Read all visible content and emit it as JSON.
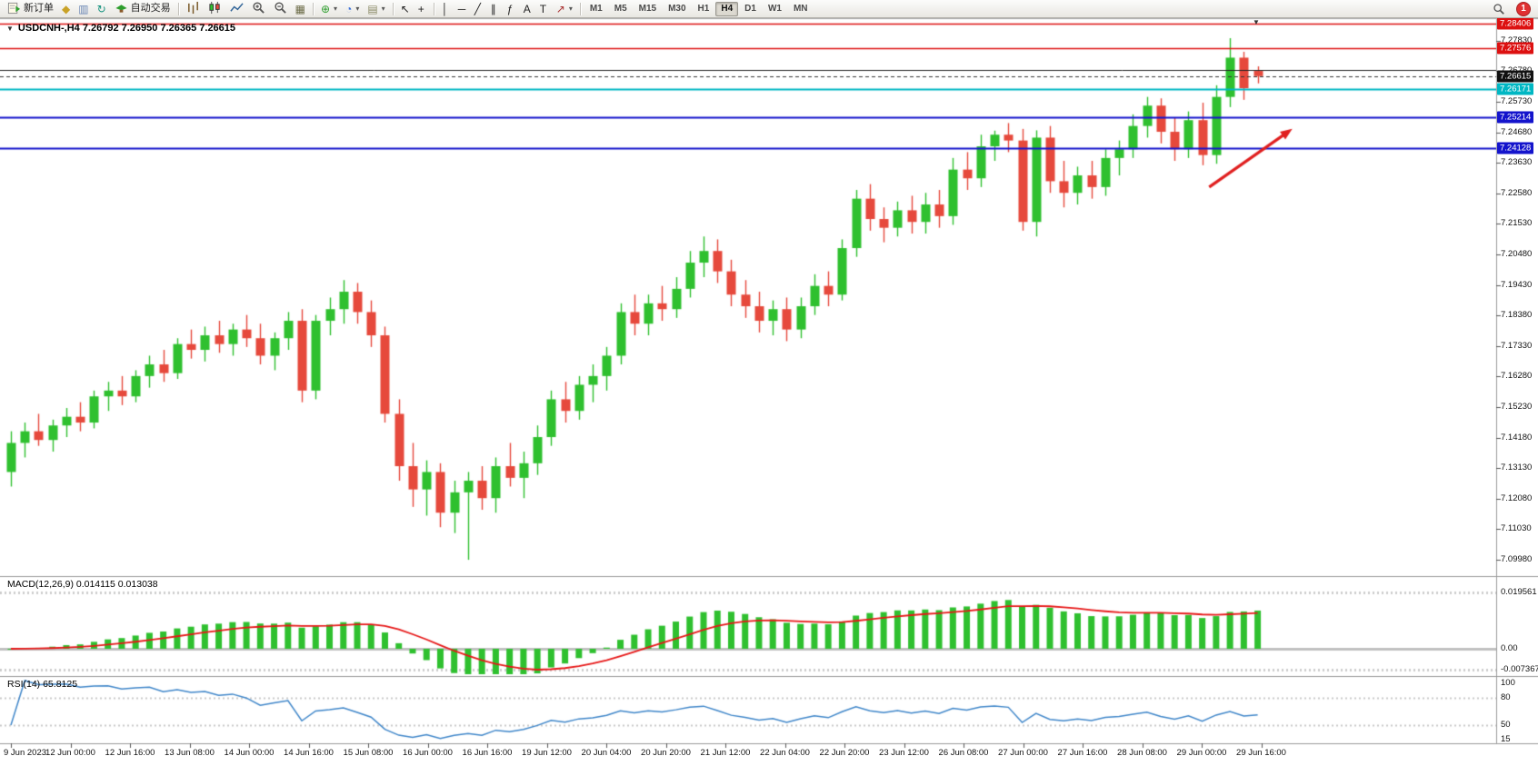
{
  "toolbar": {
    "notification_count": "1",
    "dropdown_glyph": "▾",
    "items": [
      {
        "type": "btn",
        "name": "new-order-button",
        "svg": "neworder",
        "label": "新订单"
      },
      {
        "type": "btn",
        "name": "ink-drop-icon",
        "glyph": "◆",
        "color": "#c9a227"
      },
      {
        "type": "btn",
        "name": "print-preview-icon",
        "glyph": "▥",
        "color": "#6b87b5"
      },
      {
        "type": "btn",
        "name": "refresh-icon",
        "glyph": "↻",
        "color": "#18937f"
      },
      {
        "type": "btn",
        "name": "autotrading-button",
        "svg": "robot",
        "label": "自动交易"
      },
      {
        "type": "sep"
      },
      {
        "type": "btn",
        "name": "bar-chart-icon",
        "svg": "bars"
      },
      {
        "type": "btn",
        "name": "candlestick-chart-icon",
        "svg": "candles"
      },
      {
        "type": "btn",
        "name": "line-chart-icon",
        "svg": "linechart"
      },
      {
        "type": "btn",
        "name": "zoom-in-icon",
        "svg": "zoomin"
      },
      {
        "type": "btn",
        "name": "zoom-out-icon",
        "svg": "zoomout"
      },
      {
        "type": "btn",
        "name": "tile-windows-icon",
        "glyph": "▦",
        "color": "#6d6d49"
      },
      {
        "type": "sep"
      },
      {
        "type": "btn",
        "name": "indicators-button",
        "glyph": "⊕",
        "color": "#2e9e2e",
        "dropdown": true
      },
      {
        "type": "btn",
        "name": "periods-button",
        "glyph": "◔",
        "color": "#3a6fd8",
        "dropdown": true
      },
      {
        "type": "btn",
        "name": "templates-button",
        "glyph": "▤",
        "color": "#8a8a66",
        "dropdown": true
      },
      {
        "type": "sep"
      },
      {
        "type": "btn",
        "name": "cursor-icon",
        "glyph": "↖",
        "color": "#222222"
      },
      {
        "type": "btn",
        "name": "crosshair-icon",
        "glyph": "+",
        "color": "#222222"
      },
      {
        "type": "sep"
      },
      {
        "type": "btn",
        "name": "vertical-line-icon",
        "glyph": "│",
        "color": "#222222"
      },
      {
        "type": "btn",
        "name": "horizontal-line-icon",
        "glyph": "─",
        "color": "#222222"
      },
      {
        "type": "btn",
        "name": "trendline-icon",
        "glyph": "╱",
        "color": "#222222"
      },
      {
        "type": "btn",
        "name": "equidistant-channel-icon",
        "glyph": "∥",
        "color": "#222222"
      },
      {
        "type": "btn",
        "name": "fibonacci-icon",
        "glyph": "ƒ",
        "color": "#222222"
      },
      {
        "type": "btn",
        "name": "text-icon",
        "glyph": "A",
        "color": "#222222"
      },
      {
        "type": "btn",
        "name": "text-label-icon",
        "glyph": "T",
        "color": "#222222"
      },
      {
        "type": "btn",
        "name": "arrows-icon",
        "glyph": "↗",
        "color": "#aa3333",
        "dropdown": true
      },
      {
        "type": "sep"
      }
    ],
    "timeframes": [
      {
        "label": "M1"
      },
      {
        "label": "M5"
      },
      {
        "label": "M15"
      },
      {
        "label": "M30"
      },
      {
        "label": "H1"
      },
      {
        "label": "H4",
        "active": true
      },
      {
        "label": "D1"
      },
      {
        "label": "W1"
      },
      {
        "label": "MN"
      }
    ]
  },
  "chart": {
    "menu_arrow_glyph": "▼",
    "shift_marker_glyph": "▼",
    "title": "USDCNH-,H4 7.26792 7.26950 7.26365 7.26615"
  },
  "macd": {
    "label": "MACD(12,26,9) 0.014115 0.013038",
    "scale_labels": [
      {
        "text": "0.019561",
        "value": 0.019561
      },
      {
        "text": "0.00",
        "value": 0
      },
      {
        "text": "-0.007367",
        "value": -0.007367
      }
    ]
  },
  "rsi": {
    "label": "RSI(14) 65.8125",
    "scale_labels": [
      {
        "text": "100",
        "value": 100
      },
      {
        "text": "80",
        "value": 80
      },
      {
        "text": "50",
        "value": 50
      },
      {
        "text": "15",
        "value": 15
      }
    ],
    "levels": [
      80,
      50
    ]
  },
  "chart_data": [
    {
      "type": "candlestick",
      "symbol": "USDCNH-",
      "timeframe": "H4",
      "current_bar": {
        "open": 7.26792,
        "high": 7.2695,
        "low": 7.26365,
        "close": 7.26615
      },
      "colors": {
        "up": "#2fc02f",
        "down": "#e6493c"
      },
      "y_axis_labels": [
        "7.27830",
        "7.26780",
        "7.25730",
        "7.24680",
        "7.23630",
        "7.22580",
        "7.21530",
        "7.20480",
        "7.19430",
        "7.18380",
        "7.17330",
        "7.16280",
        "7.15230",
        "7.14180",
        "7.13130",
        "7.12080",
        "7.11030",
        "7.09980"
      ],
      "x_labels": [
        "9 Jun 2023",
        "12 Jun 00:00",
        "12 Jun 16:00",
        "13 Jun 08:00",
        "14 Jun 00:00",
        "14 Jun 16:00",
        "15 Jun 08:00",
        "16 Jun 00:00",
        "16 Jun 16:00",
        "19 Jun 12:00",
        "20 Jun 04:00",
        "20 Jun 20:00",
        "21 Jun 12:00",
        "22 Jun 04:00",
        "22 Jun 20:00",
        "23 Jun 12:00",
        "26 Jun 08:00",
        "27 Jun 00:00",
        "27 Jun 16:00",
        "28 Jun 08:00",
        "29 Jun 00:00",
        "29 Jun 16:00"
      ],
      "price_lines": [
        {
          "label": "7.28406",
          "price": 7.28406,
          "color": "#dd1111",
          "width": 1.4,
          "box": true
        },
        {
          "label": "7.27576",
          "price": 7.27576,
          "color": "#dd1111",
          "width": 1.4,
          "box": true
        },
        {
          "label": "7.26840",
          "price": 7.2684,
          "color": "#222222",
          "width": 1,
          "box": false
        },
        {
          "label": "7.26171",
          "price": 7.26171,
          "color": "#00b7c3",
          "width": 2,
          "box": true
        },
        {
          "label": "7.25214",
          "price": 7.25214,
          "color": "#1414cc",
          "width": 2,
          "box": true
        },
        {
          "label": "7.24128",
          "price": 7.24128,
          "color": "#1414cc",
          "width": 2,
          "box": true
        }
      ],
      "bid": {
        "label": "7.26615",
        "price": 7.26615,
        "box_color": "#111111",
        "line_color": "#333333"
      },
      "annotation_arrow": {
        "from": {
          "bar": 86.5,
          "price": 7.228
        },
        "to": {
          "bar": 92.5,
          "price": 7.248
        },
        "color": "#e02020"
      },
      "ohlc": [
        [
          7.13,
          7.144,
          7.125,
          7.14
        ],
        [
          7.14,
          7.147,
          7.135,
          7.144
        ],
        [
          7.144,
          7.15,
          7.139,
          7.141
        ],
        [
          7.141,
          7.148,
          7.137,
          7.146
        ],
        [
          7.146,
          7.152,
          7.142,
          7.149
        ],
        [
          7.149,
          7.154,
          7.144,
          7.147
        ],
        [
          7.147,
          7.158,
          7.145,
          7.156
        ],
        [
          7.156,
          7.161,
          7.151,
          7.158
        ],
        [
          7.158,
          7.163,
          7.153,
          7.156
        ],
        [
          7.156,
          7.165,
          7.154,
          7.163
        ],
        [
          7.163,
          7.17,
          7.159,
          7.167
        ],
        [
          7.167,
          7.172,
          7.161,
          7.164
        ],
        [
          7.164,
          7.176,
          7.162,
          7.174
        ],
        [
          7.174,
          7.179,
          7.169,
          7.172
        ],
        [
          7.172,
          7.18,
          7.168,
          7.177
        ],
        [
          7.177,
          7.182,
          7.171,
          7.174
        ],
        [
          7.174,
          7.181,
          7.17,
          7.179
        ],
        [
          7.179,
          7.184,
          7.173,
          7.176
        ],
        [
          7.176,
          7.181,
          7.167,
          7.17
        ],
        [
          7.17,
          7.178,
          7.165,
          7.176
        ],
        [
          7.176,
          7.185,
          7.172,
          7.182
        ],
        [
          7.182,
          7.186,
          7.154,
          7.158
        ],
        [
          7.158,
          7.184,
          7.155,
          7.182
        ],
        [
          7.182,
          7.19,
          7.177,
          7.186
        ],
        [
          7.186,
          7.196,
          7.181,
          7.192
        ],
        [
          7.192,
          7.195,
          7.181,
          7.185
        ],
        [
          7.185,
          7.189,
          7.173,
          7.177
        ],
        [
          7.177,
          7.18,
          7.147,
          7.15
        ],
        [
          7.15,
          7.155,
          7.127,
          7.132
        ],
        [
          7.132,
          7.14,
          7.118,
          7.124
        ],
        [
          7.124,
          7.134,
          7.115,
          7.13
        ],
        [
          7.13,
          7.133,
          7.111,
          7.116
        ],
        [
          7.116,
          7.127,
          7.109,
          7.123
        ],
        [
          7.123,
          7.13,
          7.0998,
          7.127
        ],
        [
          7.127,
          7.132,
          7.117,
          7.121
        ],
        [
          7.121,
          7.135,
          7.116,
          7.132
        ],
        [
          7.132,
          7.14,
          7.125,
          7.128
        ],
        [
          7.128,
          7.137,
          7.121,
          7.133
        ],
        [
          7.133,
          7.146,
          7.129,
          7.142
        ],
        [
          7.142,
          7.158,
          7.139,
          7.155
        ],
        [
          7.155,
          7.161,
          7.147,
          7.151
        ],
        [
          7.151,
          7.163,
          7.148,
          7.16
        ],
        [
          7.16,
          7.167,
          7.154,
          7.163
        ],
        [
          7.163,
          7.173,
          7.158,
          7.17
        ],
        [
          7.17,
          7.188,
          7.167,
          7.185
        ],
        [
          7.185,
          7.191,
          7.177,
          7.181
        ],
        [
          7.181,
          7.191,
          7.177,
          7.188
        ],
        [
          7.188,
          7.194,
          7.182,
          7.186
        ],
        [
          7.186,
          7.197,
          7.183,
          7.193
        ],
        [
          7.193,
          7.206,
          7.19,
          7.202
        ],
        [
          7.202,
          7.211,
          7.197,
          7.206
        ],
        [
          7.206,
          7.21,
          7.195,
          7.199
        ],
        [
          7.199,
          7.203,
          7.187,
          7.191
        ],
        [
          7.191,
          7.196,
          7.183,
          7.187
        ],
        [
          7.187,
          7.192,
          7.178,
          7.182
        ],
        [
          7.182,
          7.189,
          7.177,
          7.186
        ],
        [
          7.186,
          7.19,
          7.175,
          7.179
        ],
        [
          7.179,
          7.19,
          7.176,
          7.187
        ],
        [
          7.187,
          7.198,
          7.184,
          7.194
        ],
        [
          7.194,
          7.199,
          7.187,
          7.191
        ],
        [
          7.191,
          7.21,
          7.189,
          7.207
        ],
        [
          7.207,
          7.227,
          7.204,
          7.224
        ],
        [
          7.224,
          7.229,
          7.213,
          7.217
        ],
        [
          7.217,
          7.221,
          7.209,
          7.214
        ],
        [
          7.214,
          7.223,
          7.211,
          7.22
        ],
        [
          7.22,
          7.225,
          7.212,
          7.216
        ],
        [
          7.216,
          7.226,
          7.212,
          7.222
        ],
        [
          7.222,
          7.227,
          7.214,
          7.218
        ],
        [
          7.218,
          7.238,
          7.215,
          7.234
        ],
        [
          7.234,
          7.24,
          7.227,
          7.231
        ],
        [
          7.231,
          7.246,
          7.228,
          7.242
        ],
        [
          7.242,
          7.2474,
          7.237,
          7.246
        ],
        [
          7.246,
          7.25,
          7.24,
          7.244
        ],
        [
          7.244,
          7.248,
          7.213,
          7.216
        ],
        [
          7.216,
          7.2475,
          7.211,
          7.245
        ],
        [
          7.245,
          7.249,
          7.226,
          7.23
        ],
        [
          7.23,
          7.237,
          7.221,
          7.226
        ],
        [
          7.226,
          7.235,
          7.222,
          7.232
        ],
        [
          7.232,
          7.237,
          7.224,
          7.228
        ],
        [
          7.228,
          7.241,
          7.225,
          7.238
        ],
        [
          7.238,
          7.244,
          7.232,
          7.241
        ],
        [
          7.241,
          7.253,
          7.238,
          7.249
        ],
        [
          7.249,
          7.259,
          7.245,
          7.256
        ],
        [
          7.256,
          7.2585,
          7.243,
          7.247
        ],
        [
          7.247,
          7.252,
          7.237,
          7.241
        ],
        [
          7.241,
          7.254,
          7.238,
          7.251
        ],
        [
          7.251,
          7.257,
          7.2355,
          7.239
        ],
        [
          7.239,
          7.263,
          7.236,
          7.259
        ],
        [
          7.259,
          7.2792,
          7.2555,
          7.2725
        ],
        [
          7.2725,
          7.2745,
          7.258,
          7.262
        ],
        [
          7.26792,
          7.2695,
          7.26365,
          7.26615
        ]
      ]
    },
    {
      "type": "bar",
      "name": "MACD(12,26,9)",
      "displayed_values": {
        "main": 0.014115,
        "signal": 0.013038
      },
      "scale_labels": [
        "0.019561",
        "0.00",
        "-0.007367"
      ],
      "derived": "histogram = EMA12(close) - EMA26(close); signal = EMA9(histogram), computed from the candlestick closes above",
      "bar_color": "#2fc02f",
      "signal_color": "#e61717"
    },
    {
      "type": "line",
      "name": "RSI(14)",
      "last_value": 65.8125,
      "scale_labels": [
        "100",
        "80",
        "50",
        "15"
      ],
      "levels": [
        80,
        50
      ],
      "derived": "RSI(14, Wilder) computed from the candlestick closes above",
      "line_color": "#3f86c9"
    }
  ]
}
